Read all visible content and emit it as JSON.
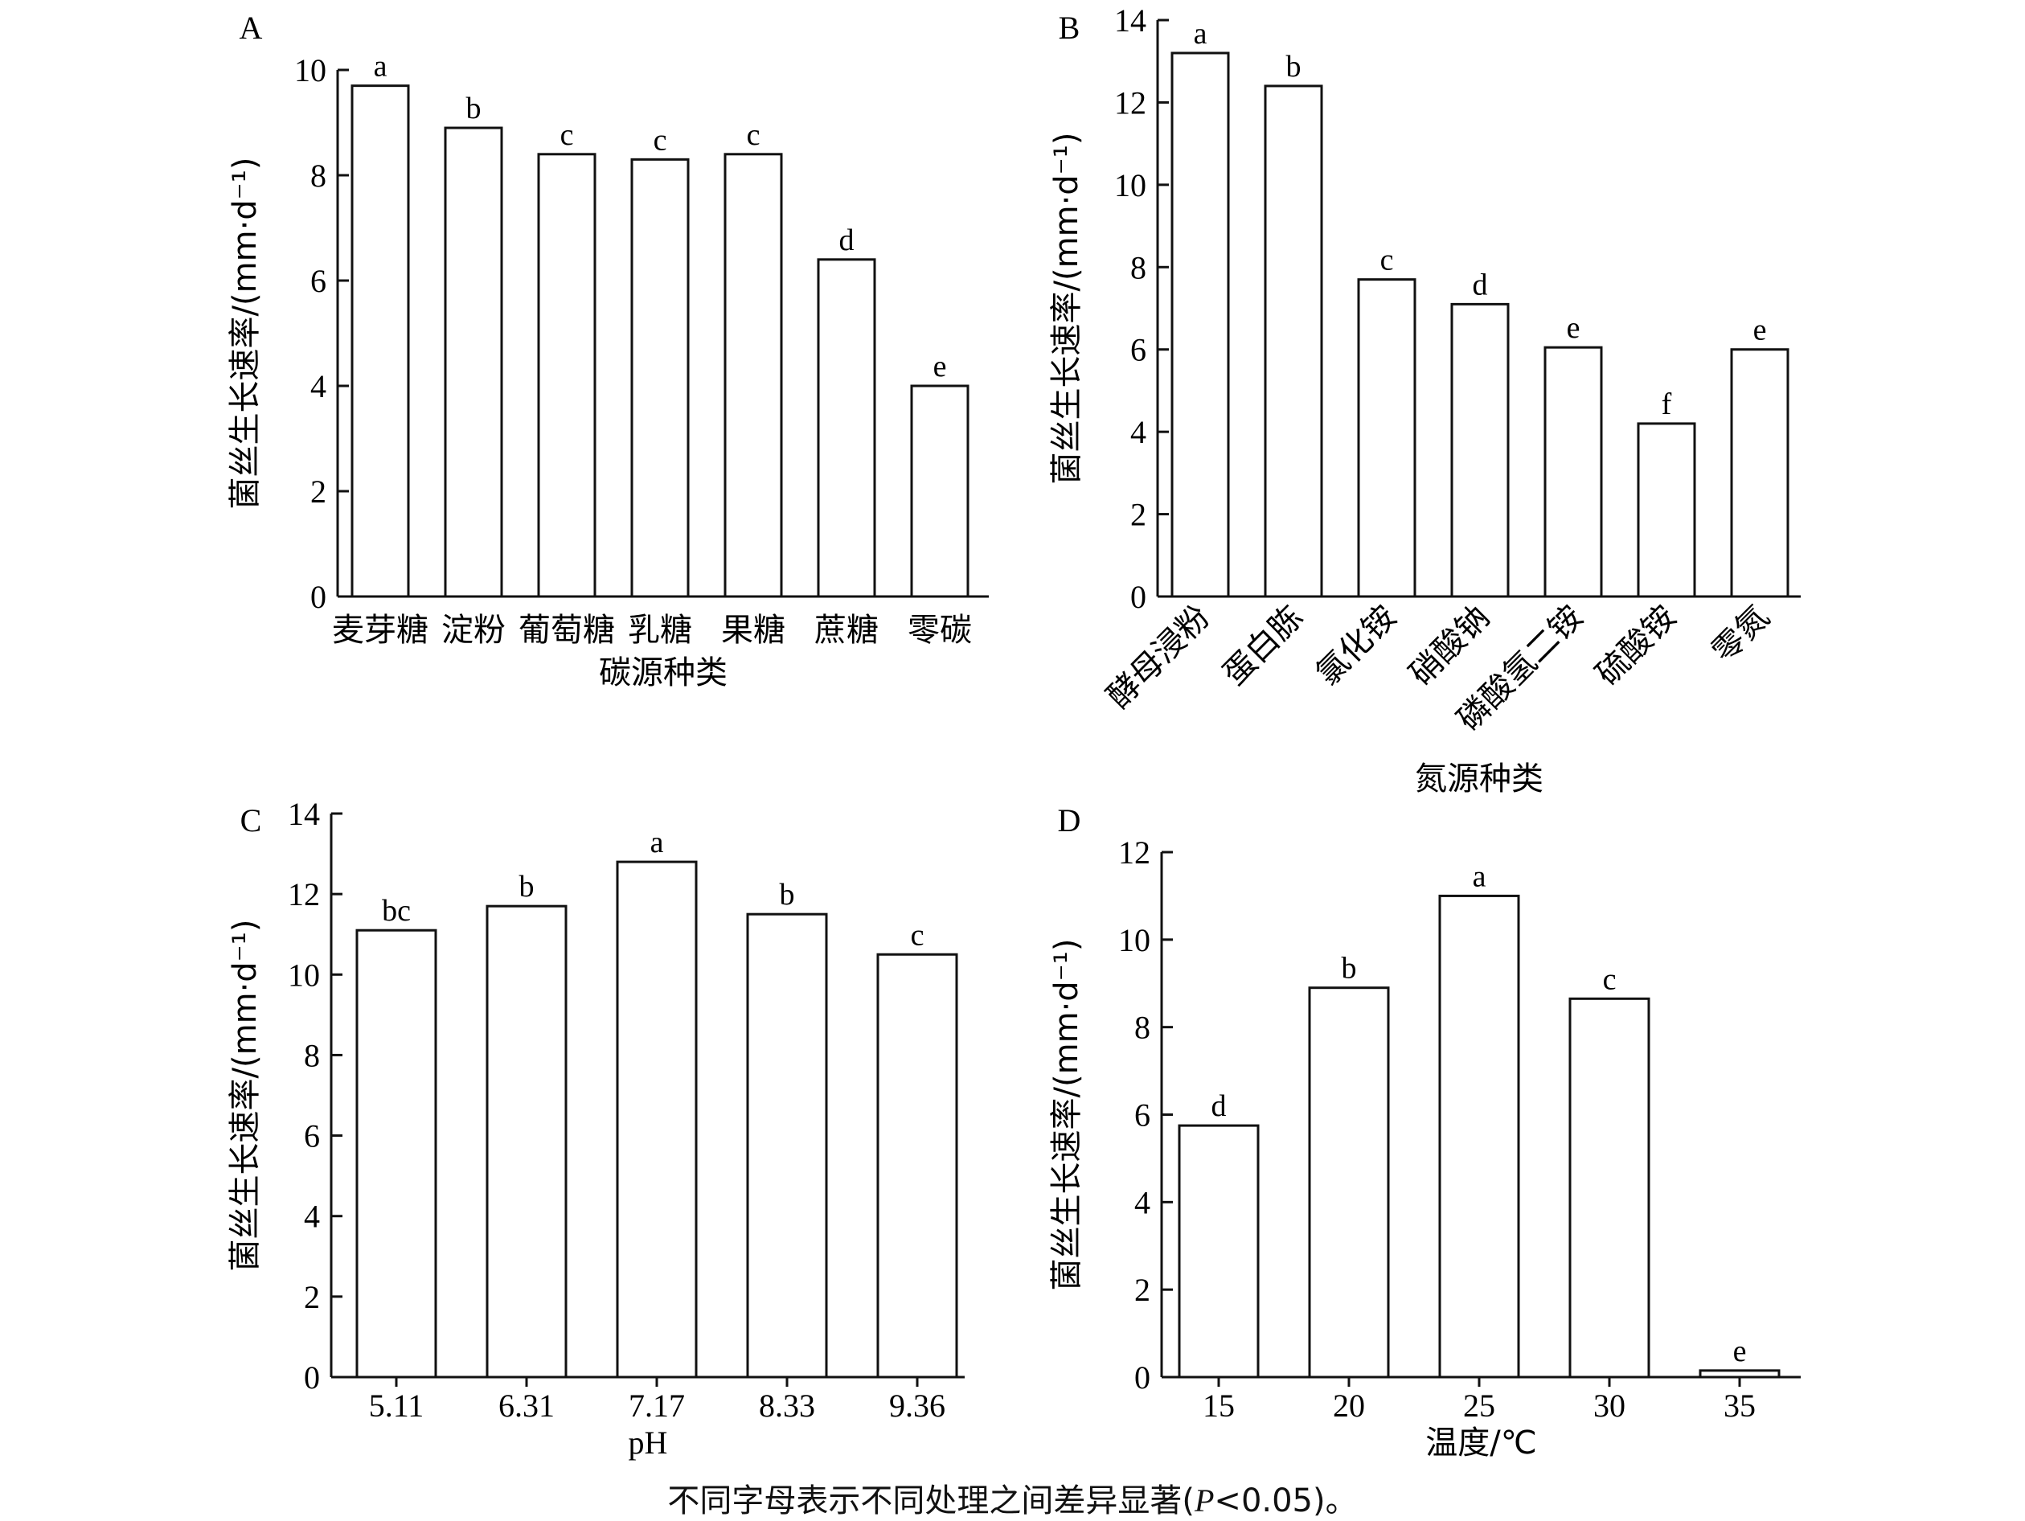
{
  "chart_data": [
    {
      "type": "bar",
      "panel": "A",
      "categories": [
        "麦芽糖",
        "淀粉",
        "葡萄糖",
        "乳糖",
        "果糖",
        "蔗糖",
        "零碳"
      ],
      "values": [
        9.7,
        8.9,
        8.4,
        8.3,
        8.4,
        6.4,
        4.0
      ],
      "significance": [
        "a",
        "b",
        "c",
        "c",
        "c",
        "d",
        "e"
      ],
      "xlabel": "碳源种类",
      "ylabel": "菌丝生长速率/(mm·d⁻¹)",
      "ylim": [
        0,
        10
      ],
      "yticks": [
        0,
        2,
        4,
        6,
        8,
        10
      ],
      "grid": false
    },
    {
      "type": "bar",
      "panel": "B",
      "categories": [
        "酵母浸粉",
        "蛋白胨",
        "氯化铵",
        "硝酸钠",
        "磷酸氢二铵",
        "硫酸铵",
        "零氮"
      ],
      "values": [
        13.2,
        12.4,
        7.7,
        7.1,
        6.05,
        4.2,
        6.0
      ],
      "significance": [
        "a",
        "b",
        "c",
        "d",
        "e",
        "f",
        "e"
      ],
      "xlabel": "氮源种类",
      "ylabel": "菌丝生长速率/(mm·d⁻¹)",
      "ylim": [
        0,
        14
      ],
      "yticks": [
        0,
        2,
        4,
        6,
        8,
        10,
        12,
        14
      ],
      "grid": false
    },
    {
      "type": "bar",
      "panel": "C",
      "categories": [
        "5.11",
        "6.31",
        "7.17",
        "8.33",
        "9.36"
      ],
      "values": [
        11.1,
        11.7,
        12.8,
        11.5,
        10.5
      ],
      "significance": [
        "bc",
        "b",
        "a",
        "b",
        "c"
      ],
      "xlabel": "pH",
      "ylabel": "菌丝生长速率/(mm·d⁻¹)",
      "ylim": [
        0,
        14
      ],
      "yticks": [
        0,
        2,
        4,
        6,
        8,
        10,
        12,
        14
      ],
      "grid": false
    },
    {
      "type": "bar",
      "panel": "D",
      "categories": [
        "15",
        "20",
        "25",
        "30",
        "35"
      ],
      "values": [
        5.75,
        8.9,
        11.0,
        8.65,
        0.15
      ],
      "significance": [
        "d",
        "b",
        "a",
        "c",
        "e"
      ],
      "xlabel": "温度/℃",
      "ylabel": "菌丝生长速率/(mm·d⁻¹)",
      "ylim": [
        0,
        12
      ],
      "yticks": [
        0,
        2,
        4,
        6,
        8,
        10,
        12
      ],
      "grid": false
    }
  ],
  "footnote": {
    "text_before": "不同字母表示不同处理之间差异显著(",
    "italic": "P",
    "text_after": "<0.05)。"
  }
}
